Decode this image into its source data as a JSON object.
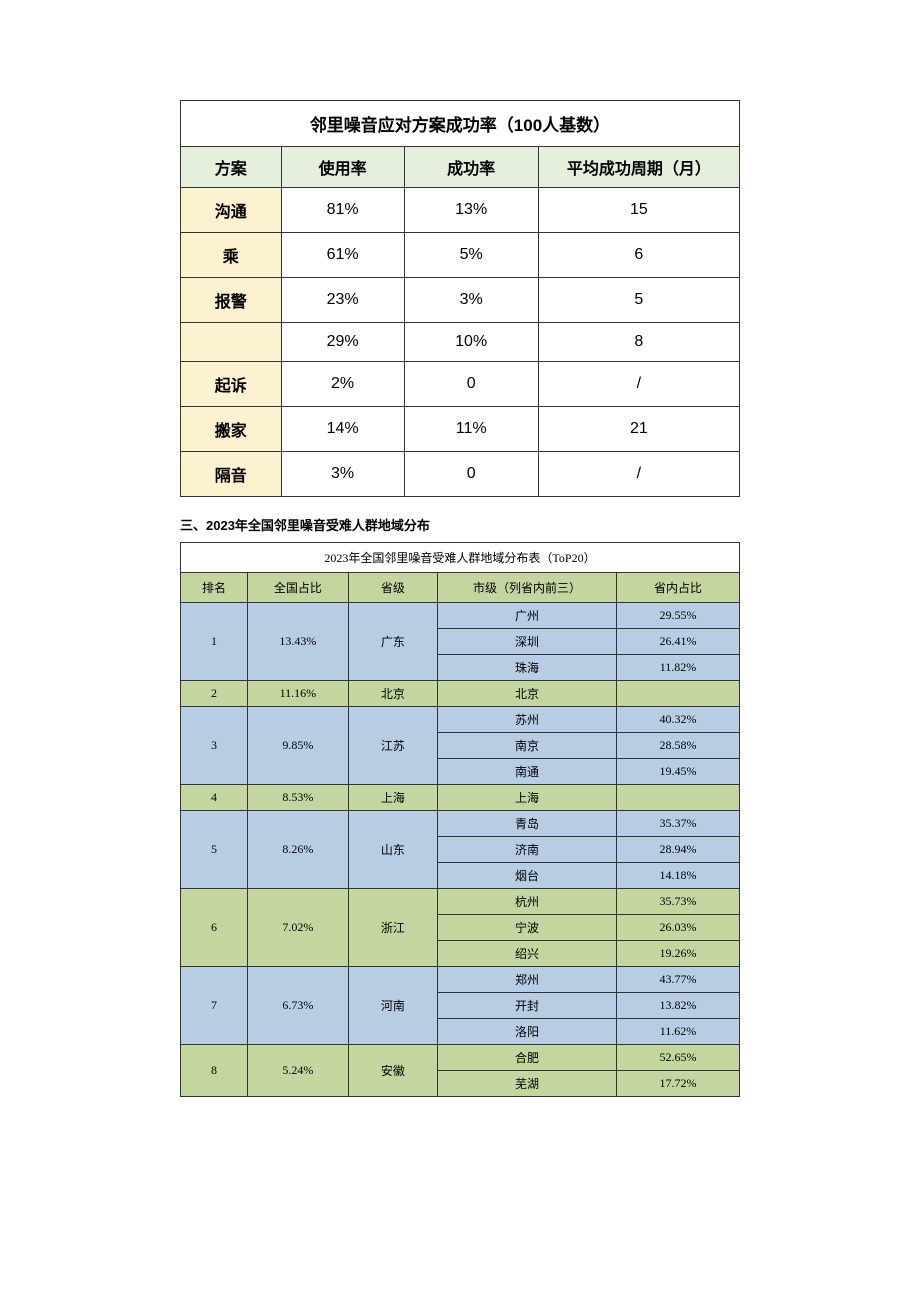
{
  "table1": {
    "title": "邻里噪音应对方案成功率（100人基数）",
    "headers": [
      "方案",
      "使用率",
      "成功率",
      "平均成功周期（月）"
    ],
    "rows": [
      {
        "method": "沟通",
        "usage": "81%",
        "success": "13%",
        "cycle": "15"
      },
      {
        "method": "乘",
        "usage": "61%",
        "success": "5%",
        "cycle": "6"
      },
      {
        "method": "报警",
        "usage": "23%",
        "success": "3%",
        "cycle": "5"
      },
      {
        "method": "",
        "usage": "29%",
        "success": "10%",
        "cycle": "8"
      },
      {
        "method": "起诉",
        "usage": "2%",
        "success": "0",
        "cycle": "/"
      },
      {
        "method": "搬家",
        "usage": "14%",
        "success": "11%",
        "cycle": "21"
      },
      {
        "method": "隔音",
        "usage": "3%",
        "success": "0",
        "cycle": "/"
      }
    ],
    "col_widths": [
      "18%",
      "22%",
      "24%",
      "36%"
    ],
    "header_bg": "#e4efdc",
    "method_bg": "#fdf2d0"
  },
  "section_heading": {
    "prefix": "三、2023",
    "suffix": "年全国邻里噪音受难人群地域分布"
  },
  "table2": {
    "title": "2023年全国邻里噪音受难人群地域分布表（ToP20）",
    "headers": [
      "排名",
      "全国占比",
      "省级",
      "市级（列省内前三）",
      "省内占比"
    ],
    "colors": {
      "blue": "#b7cde4",
      "green": "#c4d6a0"
    },
    "entries": [
      {
        "rank": "1",
        "national_pct": "13.43%",
        "province": "广东",
        "color": "blue",
        "cities": [
          {
            "name": "广州",
            "pct": "29.55%"
          },
          {
            "name": "深圳",
            "pct": "26.41%"
          },
          {
            "name": "珠海",
            "pct": "11.82%"
          }
        ]
      },
      {
        "rank": "2",
        "national_pct": "11.16%",
        "province": "北京",
        "color": "green",
        "cities": [
          {
            "name": "北京",
            "pct": ""
          }
        ]
      },
      {
        "rank": "3",
        "national_pct": "9.85%",
        "province": "江苏",
        "color": "blue",
        "cities": [
          {
            "name": "苏州",
            "pct": "40.32%"
          },
          {
            "name": "南京",
            "pct": "28.58%"
          },
          {
            "name": "南通",
            "pct": "19.45%"
          }
        ]
      },
      {
        "rank": "4",
        "national_pct": "8.53%",
        "province": "上海",
        "color": "green",
        "cities": [
          {
            "name": "上海",
            "pct": ""
          }
        ]
      },
      {
        "rank": "5",
        "national_pct": "8.26%",
        "province": "山东",
        "color": "blue",
        "cities": [
          {
            "name": "青岛",
            "pct": "35.37%"
          },
          {
            "name": "济南",
            "pct": "28.94%"
          },
          {
            "name": "烟台",
            "pct": "14.18%"
          }
        ]
      },
      {
        "rank": "6",
        "national_pct": "7.02%",
        "province": "浙江",
        "color": "green",
        "cities": [
          {
            "name": "杭州",
            "pct": "35.73%"
          },
          {
            "name": "宁波",
            "pct": "26.03%"
          },
          {
            "name": "绍兴",
            "pct": "19.26%"
          }
        ]
      },
      {
        "rank": "7",
        "national_pct": "6.73%",
        "province": "河南",
        "color": "blue",
        "cities": [
          {
            "name": "郑州",
            "pct": "43.77%"
          },
          {
            "name": "开封",
            "pct": "13.82%"
          },
          {
            "name": "洛阳",
            "pct": "11.62%"
          }
        ]
      },
      {
        "rank": "8",
        "national_pct": "5.24%",
        "province": "安徽",
        "color": "green",
        "cities": [
          {
            "name": "合肥",
            "pct": "52.65%"
          },
          {
            "name": "芜湖",
            "pct": "17.72%"
          }
        ]
      }
    ]
  }
}
